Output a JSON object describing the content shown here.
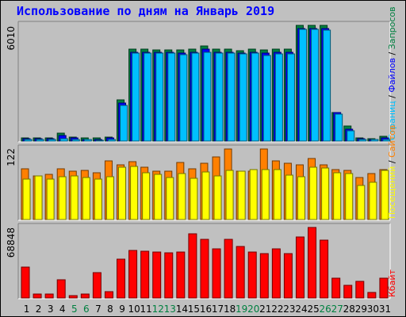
{
  "window": {
    "title": "Использование по дням на Январь 2019"
  },
  "colors": {
    "background": "#c0c0c0",
    "title": "#0000ff",
    "hits": "#008040",
    "files": "#0000ff",
    "pages": "#00c0ff",
    "visits": "#ff8000",
    "sites": "#ffff00",
    "kbytes": "#ff0000",
    "weekend_label": "#008040",
    "weekday_label": "#000000"
  },
  "chart_data": [
    {
      "type": "bar",
      "panel": "requests",
      "ymax_label": "6010",
      "ylim": [
        0,
        6010
      ],
      "x": [
        1,
        2,
        3,
        4,
        5,
        6,
        7,
        8,
        9,
        10,
        11,
        12,
        13,
        14,
        15,
        16,
        17,
        18,
        19,
        20,
        21,
        22,
        23,
        24,
        25,
        26,
        27,
        28,
        29,
        30,
        31
      ],
      "legend": [
        "Запросов",
        "/",
        "Файлов",
        "/",
        "Страниц"
      ],
      "series": [
        {
          "name": "Запросов",
          "color": "#008040",
          "values": [
            180,
            170,
            160,
            400,
            210,
            150,
            150,
            200,
            2150,
            4770,
            4770,
            4730,
            4720,
            4720,
            4770,
            4960,
            4770,
            4770,
            4700,
            4770,
            4730,
            4770,
            4770,
            6010,
            6010,
            6010,
            1500,
            780,
            180,
            140,
            250
          ]
        },
        {
          "name": "Файлов",
          "color": "#0000ff",
          "values": [
            120,
            110,
            110,
            300,
            150,
            100,
            100,
            150,
            1960,
            4620,
            4630,
            4620,
            4620,
            4570,
            4630,
            4780,
            4620,
            4620,
            4580,
            4620,
            4560,
            4620,
            4620,
            5860,
            5860,
            5840,
            1470,
            630,
            120,
            100,
            160
          ]
        },
        {
          "name": "Страниц",
          "color": "#00c0ff",
          "values": [
            80,
            90,
            80,
            130,
            100,
            70,
            60,
            80,
            1860,
            4570,
            4570,
            4560,
            4550,
            4480,
            4560,
            4630,
            4570,
            4560,
            4520,
            4560,
            4440,
            4540,
            4530,
            5810,
            5810,
            5780,
            1420,
            520,
            90,
            80,
            90
          ]
        }
      ]
    },
    {
      "type": "bar",
      "panel": "visits",
      "ymax_label": "122",
      "ylim": [
        0,
        122
      ],
      "x": [
        1,
        2,
        3,
        4,
        5,
        6,
        7,
        8,
        9,
        10,
        11,
        12,
        13,
        14,
        15,
        16,
        17,
        18,
        19,
        20,
        21,
        22,
        23,
        24,
        25,
        26,
        27,
        28,
        29,
        30,
        31
      ],
      "legend": [
        "Сайтов",
        "/",
        "Посещений"
      ],
      "series": [
        {
          "name": "Посещений",
          "color": "#ff8000",
          "values": [
            88,
            75,
            78,
            88,
            83,
            85,
            81,
            101,
            94,
            100,
            90,
            84,
            83,
            99,
            88,
            97,
            108,
            122,
            84,
            83,
            122,
            102,
            97,
            94,
            106,
            95,
            86,
            85,
            72,
            80,
            86
          ]
        },
        {
          "name": "Сайтов",
          "color": "#ffff00",
          "values": [
            70,
            76,
            70,
            74,
            75,
            72,
            70,
            74,
            90,
            92,
            81,
            78,
            72,
            80,
            71,
            82,
            76,
            85,
            84,
            86,
            87,
            86,
            77,
            74,
            90,
            89,
            81,
            80,
            59,
            64,
            85
          ]
        }
      ]
    },
    {
      "type": "bar",
      "panel": "kbytes",
      "ymax_label": "68848",
      "ylim": [
        0,
        68848
      ],
      "x": [
        1,
        2,
        3,
        4,
        5,
        6,
        7,
        8,
        9,
        10,
        11,
        12,
        13,
        14,
        15,
        16,
        17,
        18,
        19,
        20,
        21,
        22,
        23,
        24,
        25,
        26,
        27,
        28,
        29,
        30,
        31
      ],
      "legend": [
        "Кбайт"
      ],
      "series": [
        {
          "name": "Кбайт",
          "color": "#ff0000",
          "values": [
            30000,
            3600,
            3600,
            17600,
            2300,
            3600,
            25000,
            6400,
            38000,
            46500,
            46000,
            44500,
            44000,
            45000,
            63000,
            57500,
            48000,
            57500,
            50000,
            45000,
            43600,
            48000,
            43000,
            59500,
            68848,
            56500,
            19500,
            12000,
            16500,
            5800,
            19500
          ]
        }
      ]
    }
  ],
  "x_labels": [
    {
      "text": "1",
      "weekend": false
    },
    {
      "text": "2",
      "weekend": false
    },
    {
      "text": "3",
      "weekend": false
    },
    {
      "text": "4",
      "weekend": false
    },
    {
      "text": "5",
      "weekend": true
    },
    {
      "text": "6",
      "weekend": true
    },
    {
      "text": "7",
      "weekend": false
    },
    {
      "text": "8",
      "weekend": false
    },
    {
      "text": "9",
      "weekend": false
    },
    {
      "text": "10",
      "weekend": false
    },
    {
      "text": "11",
      "weekend": false
    },
    {
      "text": "12",
      "weekend": true
    },
    {
      "text": "13",
      "weekend": true
    },
    {
      "text": "14",
      "weekend": false
    },
    {
      "text": "15",
      "weekend": false
    },
    {
      "text": "16",
      "weekend": false
    },
    {
      "text": "17",
      "weekend": false
    },
    {
      "text": "18",
      "weekend": false
    },
    {
      "text": "19",
      "weekend": true
    },
    {
      "text": "20",
      "weekend": true
    },
    {
      "text": "21",
      "weekend": false
    },
    {
      "text": "22",
      "weekend": false
    },
    {
      "text": "23",
      "weekend": false
    },
    {
      "text": "24",
      "weekend": false
    },
    {
      "text": "25",
      "weekend": false
    },
    {
      "text": "26",
      "weekend": true
    },
    {
      "text": "27",
      "weekend": true
    },
    {
      "text": "28",
      "weekend": false
    },
    {
      "text": "29",
      "weekend": false
    },
    {
      "text": "30",
      "weekend": false
    },
    {
      "text": "31",
      "weekend": false
    }
  ]
}
